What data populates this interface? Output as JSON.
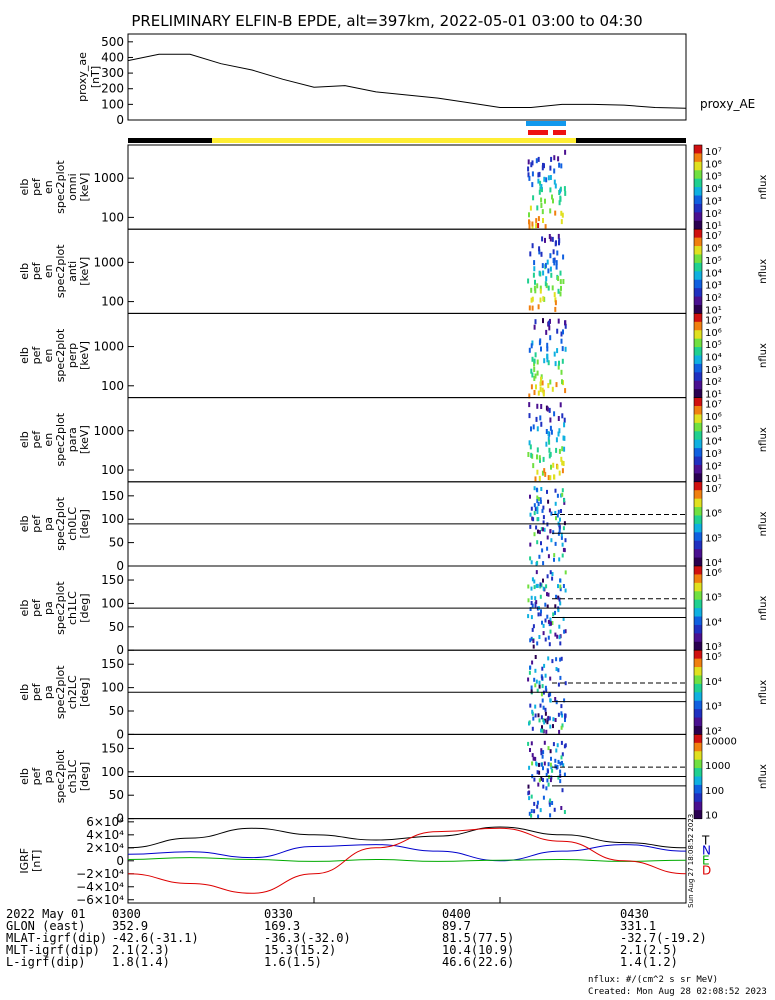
{
  "title": "PRELIMINARY ELFIN-B EPDE, alt=397km, 2022-05-01 03:00 to 04:30",
  "chart_data": [
    {
      "type": "line",
      "panel": "proxy_ae",
      "ylabel": [
        "proxy_ae",
        "[nT]"
      ],
      "legend": "proxy_AE",
      "yticks": [
        "500",
        "400",
        "300",
        "200",
        "100",
        "0"
      ],
      "ylim": [
        0,
        550
      ],
      "x_minutes": [
        0,
        5,
        10,
        15,
        20,
        25,
        30,
        35,
        40,
        45,
        50,
        55,
        60,
        65,
        70,
        75,
        80,
        85,
        90
      ],
      "values": [
        380,
        420,
        420,
        360,
        320,
        260,
        210,
        220,
        180,
        160,
        140,
        110,
        80,
        80,
        100,
        100,
        95,
        80,
        75
      ]
    },
    {
      "type": "heatmap",
      "panel": "omni",
      "ylabel": [
        "elb",
        "pef",
        "en",
        "spec2plot",
        "omni",
        "[keV]"
      ],
      "yticks": [
        "1000",
        "100"
      ],
      "y_scale": "log",
      "ylim_keV": [
        50,
        7000
      ],
      "colorbar": {
        "label": "nflux",
        "ticks": [
          "10⁷",
          "10⁶",
          "10⁵",
          "10⁴",
          "10³",
          "10²",
          "10¹"
        ]
      }
    },
    {
      "type": "heatmap",
      "panel": "anti",
      "ylabel": [
        "elb",
        "pef",
        "en",
        "spec2plot",
        "anti",
        "[keV]"
      ],
      "yticks": [
        "1000",
        "100"
      ],
      "y_scale": "log",
      "ylim_keV": [
        50,
        7000
      ],
      "colorbar": {
        "label": "nflux",
        "ticks": [
          "10⁷",
          "10⁶",
          "10⁵",
          "10⁴",
          "10³",
          "10²",
          "10¹"
        ]
      }
    },
    {
      "type": "heatmap",
      "panel": "perp",
      "ylabel": [
        "elb",
        "pef",
        "en",
        "spec2plot",
        "perp",
        "[keV]"
      ],
      "yticks": [
        "1000",
        "100"
      ],
      "y_scale": "log",
      "ylim_keV": [
        50,
        7000
      ],
      "colorbar": {
        "label": "nflux",
        "ticks": [
          "10⁷",
          "10⁶",
          "10⁵",
          "10⁴",
          "10³",
          "10²",
          "10¹"
        ]
      }
    },
    {
      "type": "heatmap",
      "panel": "para",
      "ylabel": [
        "elb",
        "pef",
        "en",
        "spec2plot",
        "para",
        "[keV]"
      ],
      "yticks": [
        "1000",
        "100"
      ],
      "y_scale": "log",
      "ylim_keV": [
        50,
        7000
      ],
      "colorbar": {
        "label": "nflux",
        "ticks": [
          "10⁷",
          "10⁶",
          "10⁵",
          "10⁴",
          "10³",
          "10²",
          "10¹"
        ]
      }
    },
    {
      "type": "heatmap",
      "panel": "ch0LC",
      "ylabel": [
        "elb",
        "pef",
        "pa",
        "spec2plot",
        "ch0LC",
        "[deg]"
      ],
      "yticks": [
        "150",
        "100",
        "50",
        "0"
      ],
      "ylim": [
        0,
        180
      ],
      "colorbar": {
        "label": "nflux",
        "ticks": [
          "10⁷",
          "10⁶",
          "10⁵",
          "10⁴"
        ]
      }
    },
    {
      "type": "heatmap",
      "panel": "ch1LC",
      "ylabel": [
        "elb",
        "pef",
        "pa",
        "spec2plot",
        "ch1LC",
        "[deg]"
      ],
      "yticks": [
        "150",
        "100",
        "50",
        "0"
      ],
      "ylim": [
        0,
        180
      ],
      "colorbar": {
        "label": "nflux",
        "ticks": [
          "10⁶",
          "10⁵",
          "10⁴",
          "10³"
        ]
      }
    },
    {
      "type": "heatmap",
      "panel": "ch2LC",
      "ylabel": [
        "elb",
        "pef",
        "pa",
        "spec2plot",
        "ch2LC",
        "[deg]"
      ],
      "yticks": [
        "150",
        "100",
        "50",
        "0"
      ],
      "ylim": [
        0,
        180
      ],
      "colorbar": {
        "label": "nflux",
        "ticks": [
          "10⁵",
          "10⁴",
          "10³",
          "10²"
        ]
      }
    },
    {
      "type": "heatmap",
      "panel": "ch3LC",
      "ylabel": [
        "elb",
        "pef",
        "pa",
        "spec2plot",
        "ch3LC",
        "[deg]"
      ],
      "yticks": [
        "150",
        "100",
        "50",
        "0"
      ],
      "ylim": [
        0,
        180
      ],
      "colorbar": {
        "label": "nflux",
        "ticks": [
          "10000",
          "1000",
          "100",
          "10"
        ]
      }
    },
    {
      "type": "line",
      "panel": "igrf",
      "ylabel": [
        "IGRF",
        "[nT]"
      ],
      "yticks": [
        "6×10⁴",
        "4×10⁴",
        "2×10⁴",
        "0",
        "−2×10⁴",
        "−4×10⁴",
        "−6×10⁴"
      ],
      "ylim": [
        -65000,
        65000
      ],
      "legend": [
        "T",
        "N",
        "E",
        "D"
      ],
      "side_text": "Sun Aug 27 18:08:52 2023",
      "series": [
        {
          "color": "#000000",
          "x_minutes": [
            0,
            10,
            20,
            30,
            40,
            50,
            60,
            70,
            80,
            90
          ],
          "values": [
            20000,
            35000,
            50000,
            40000,
            32000,
            38000,
            52000,
            40000,
            28000,
            20000
          ]
        },
        {
          "color": "#0000cc",
          "x_minutes": [
            0,
            10,
            20,
            30,
            40,
            50,
            60,
            70,
            80,
            90
          ],
          "values": [
            10000,
            14000,
            5000,
            22000,
            25000,
            15000,
            0,
            15000,
            25000,
            15000
          ]
        },
        {
          "color": "#00aa00",
          "x_minutes": [
            0,
            10,
            20,
            30,
            40,
            50,
            60,
            70,
            80,
            90
          ],
          "values": [
            2000,
            5000,
            2000,
            -1000,
            2000,
            -1000,
            1000,
            2000,
            -1000,
            1000
          ]
        },
        {
          "color": "#dd0000",
          "x_minutes": [
            0,
            10,
            20,
            30,
            40,
            50,
            60,
            70,
            80,
            90
          ],
          "values": [
            -20000,
            -35000,
            -50000,
            -20000,
            20000,
            45000,
            50000,
            30000,
            0,
            -20000
          ]
        }
      ]
    }
  ],
  "footer": {
    "rows": [
      [
        "2022 May 01",
        "0300",
        "0330",
        "0400",
        "0430"
      ],
      [
        "GLON (east)",
        "352.9",
        "169.3",
        "89.7",
        "331.1"
      ],
      [
        "MLAT-igrf(dip)",
        "-42.6(-31.1)",
        "-36.3(-32.0)",
        "81.5(77.5)",
        "-32.7(-19.2)"
      ],
      [
        "MLT-igrf(dip)",
        "2.1(2.3)",
        "15.3(15.2)",
        "10.4(10.9)",
        "2.1(2.5)"
      ],
      [
        "L-igrf(dip)",
        "1.8(1.4)",
        "1.6(1.5)",
        "46.6(22.6)",
        "1.4(1.2)"
      ]
    ],
    "units": "nflux: #/(cm^2 s sr MeV)",
    "created": "Created: Mon Aug 28 02:08:52 2023"
  },
  "colors": {
    "sunlight": "#ffee33",
    "shadow": "#000000",
    "science_blue": "#1199ee",
    "science_red": "#ee1111"
  }
}
